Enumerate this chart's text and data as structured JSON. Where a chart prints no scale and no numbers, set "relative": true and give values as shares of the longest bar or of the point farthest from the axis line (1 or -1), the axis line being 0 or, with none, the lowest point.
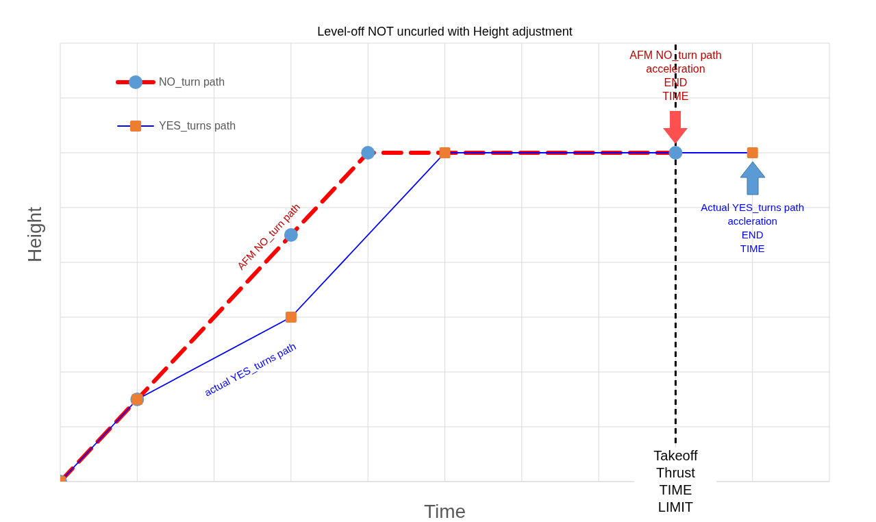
{
  "chart_data": {
    "type": "line",
    "title": "Level-off NOT uncurled with Height adjustment",
    "xlabel": "Time",
    "ylabel": "Height",
    "relative": true,
    "categories": [
      null,
      null,
      null,
      null,
      null,
      null,
      null,
      null,
      null,
      null,
      null
    ],
    "grid": true,
    "legend": "top left",
    "series": [
      {
        "name": "NO_turn path",
        "color": "#ff0000",
        "line_style": "dashed",
        "marker": "circle",
        "values": [
          0,
          0.25,
          null,
          0.75,
          1,
          null,
          null,
          null,
          1,
          null,
          null
        ],
        "colors": [
          "#5b9bd5",
          "#5b9bd5",
          null,
          "#5b9bd5",
          "#5b9bd5",
          null,
          null,
          null,
          "#5b9bd5",
          null,
          null
        ]
      },
      {
        "name": "YES_turns path",
        "color": "#0000ff",
        "line_style": "solid",
        "marker": "square",
        "values": [
          0,
          0.25,
          null,
          0.5,
          null,
          1,
          null,
          null,
          null,
          1,
          null
        ],
        "colors": [
          "#ed7d31",
          "#ed7d31",
          null,
          "#ed7d31",
          null,
          "#ed7d31",
          null,
          null,
          null,
          "#ed7d31",
          null
        ]
      }
    ],
    "annotations": [
      "Takeoff\nThrust\nTIME\nLIMIT",
      "AFM NO_turn path\nacceleration\nEND\nTIME",
      "Actual YES_turns path\naccleration\nEND\nTIME",
      "AFM NO_turn path",
      "actual YES_turns path"
    ]
  }
}
